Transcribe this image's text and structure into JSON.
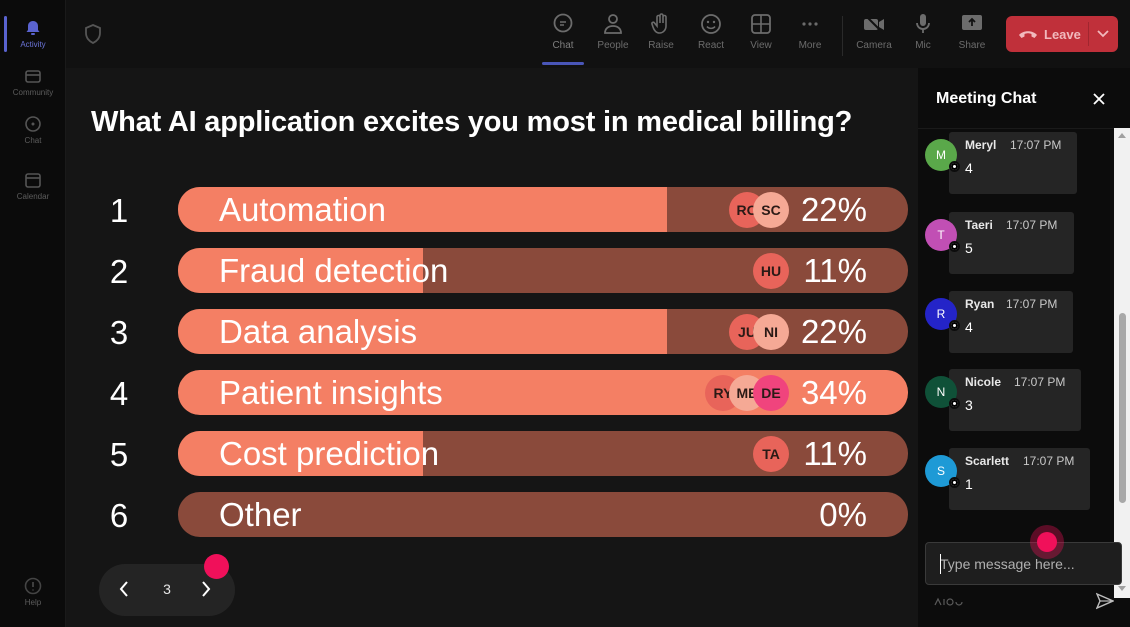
{
  "rail": {
    "items": [
      {
        "label": "Activity",
        "active": true
      },
      {
        "label": "Community",
        "active": false
      },
      {
        "label": "Chat",
        "active": false
      },
      {
        "label": "Calendar",
        "active": false
      }
    ],
    "help_label": "Help"
  },
  "toolbar": {
    "chat_label": "Chat",
    "people_label": "People",
    "raise_label": "Raise",
    "react_label": "React",
    "view_label": "View",
    "more_label": "More",
    "camera_label": "Camera",
    "mic_label": "Mic",
    "share_label": "Share",
    "leave_label": "Leave"
  },
  "poll": {
    "question": "What AI application excites you most in medical billing?",
    "options": [
      {
        "num": "1",
        "label": "Automation",
        "percent": 22,
        "percent_label": "22%",
        "fill": 0.67,
        "voters": [
          "RO",
          "SC"
        ]
      },
      {
        "num": "2",
        "label": "Fraud detection",
        "percent": 11,
        "percent_label": "11%",
        "fill": 0.335,
        "voters": [
          "HU"
        ]
      },
      {
        "num": "3",
        "label": "Data analysis",
        "percent": 22,
        "percent_label": "22%",
        "fill": 0.67,
        "voters": [
          "JU",
          "NI"
        ]
      },
      {
        "num": "4",
        "label": "Patient insights",
        "percent": 34,
        "percent_label": "34%",
        "fill": 1.0,
        "voters": [
          "RY",
          "ME",
          "DE"
        ]
      },
      {
        "num": "5",
        "label": "Cost prediction",
        "percent": 11,
        "percent_label": "11%",
        "fill": 0.335,
        "voters": [
          "TA"
        ]
      },
      {
        "num": "6",
        "label": "Other",
        "percent": 0,
        "percent_label": "0%",
        "fill": 0.0,
        "voters": []
      }
    ],
    "voter_colors": [
      "#e8645a",
      "#f5a995",
      "#f0447d"
    ]
  },
  "pager": {
    "page": "3"
  },
  "chat": {
    "title": "Meeting Chat",
    "messages": [
      {
        "initial": "M",
        "name": "Meryl",
        "time": "17:07 PM",
        "text": "4",
        "color": "#5aa84a"
      },
      {
        "initial": "T",
        "name": "Taeri",
        "time": "17:07 PM",
        "text": "5",
        "color": "#c14fb4"
      },
      {
        "initial": "R",
        "name": "Ryan",
        "time": "17:07 PM",
        "text": "4",
        "color": "#2424c8"
      },
      {
        "initial": "N",
        "name": "Nicole",
        "time": "17:07 PM",
        "text": "3",
        "color": "#0f5138"
      },
      {
        "initial": "S",
        "name": "Scarlett",
        "time": "17:07 PM",
        "text": "1",
        "color": "#1e9ad6"
      }
    ],
    "input_placeholder": "Type message here..."
  }
}
